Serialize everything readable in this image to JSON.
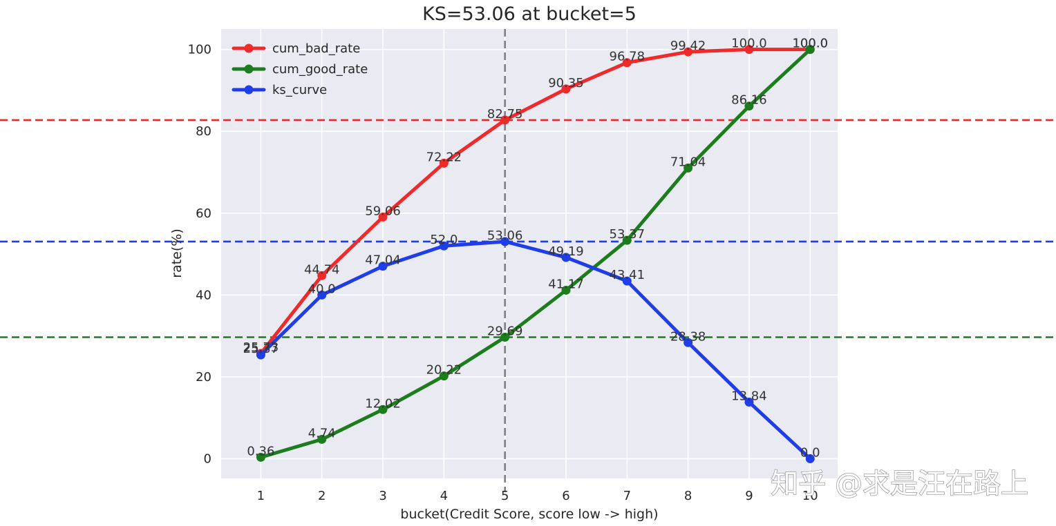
{
  "chart_data": {
    "type": "line",
    "title": "KS=53.06 at bucket=5",
    "xlabel": "bucket(Credit Score, score low -> high)",
    "ylabel": "rate(%)",
    "x": [
      1,
      2,
      3,
      4,
      5,
      6,
      7,
      8,
      9,
      10
    ],
    "xlim": [
      0.35,
      10.45
    ],
    "ylim": [
      -4.8,
      105
    ],
    "yticks": [
      0,
      20,
      40,
      60,
      80,
      100
    ],
    "grid": true,
    "legend_position": "top-left",
    "series": [
      {
        "name": "cum_bad_rate",
        "color": "#ee2a2a",
        "values": [
          25.73,
          44.74,
          59.06,
          72.22,
          82.75,
          90.35,
          96.78,
          99.42,
          100.0,
          100.0
        ],
        "labels": [
          "25.73",
          "44.74",
          "59.06",
          "72.22",
          "82.75",
          "90.35",
          "96.78",
          "99.42",
          "100.0",
          "100.0"
        ]
      },
      {
        "name": "cum_good_rate",
        "color": "#1c7d1c",
        "values": [
          0.36,
          4.74,
          12.02,
          20.22,
          29.69,
          41.17,
          53.37,
          71.04,
          86.16,
          100.0
        ],
        "labels": [
          "0.36",
          "4.74",
          "12.02",
          "20.22",
          "29.69",
          "41.17",
          "53.37",
          "71.04",
          "86.16",
          "100.0"
        ]
      },
      {
        "name": "ks_curve",
        "color": "#1f3de8",
        "values": [
          25.37,
          40.0,
          47.04,
          52.0,
          53.06,
          49.19,
          43.41,
          28.38,
          13.84,
          0.0
        ],
        "labels": [
          "25.37",
          "40.0",
          "47.04",
          "52.0",
          "53.06",
          "49.19",
          "43.41",
          "28.38",
          "13.84",
          "0.0"
        ]
      }
    ],
    "reference_lines": {
      "horizontal": [
        {
          "y": 82.75,
          "color": "#ee2a2a"
        },
        {
          "y": 53.06,
          "color": "#1f3de8"
        },
        {
          "y": 29.69,
          "color": "#1c7d1c"
        }
      ],
      "vertical": [
        {
          "x": 5,
          "color": "#808080"
        }
      ]
    }
  },
  "watermark": {
    "text": "知乎 @求是汪在路上"
  }
}
